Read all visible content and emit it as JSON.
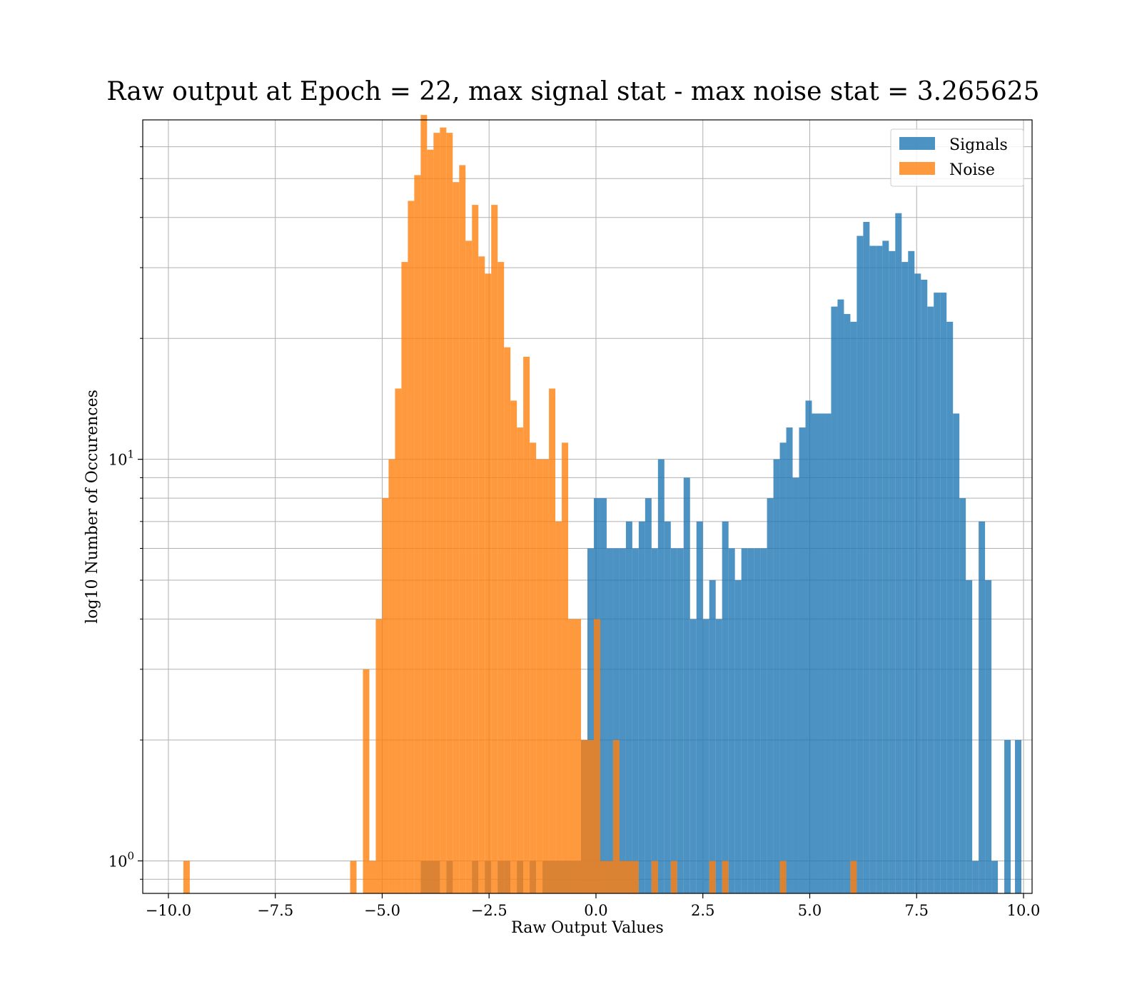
{
  "chart_data": {
    "type": "bar",
    "title": "Raw output at Epoch = 22, max signal stat - max noise stat = 3.265625",
    "xlabel": "Raw Output Values",
    "ylabel": "log10 Number of Occurences",
    "xlim": [
      -10.6,
      10.2
    ],
    "ylim": [
      0.83,
      70
    ],
    "yscale": "log",
    "grid": true,
    "legend_position": "top-right",
    "x_ticks": [
      -10.0,
      -7.5,
      -5.0,
      -2.5,
      0.0,
      2.5,
      5.0,
      7.5,
      10.0
    ],
    "x_tick_labels": [
      "−10.0",
      "−7.5",
      "−5.0",
      "−2.5",
      "0.0",
      "2.5",
      "5.0",
      "7.5",
      "10.0"
    ],
    "y_major_ticks": [
      1,
      10
    ],
    "y_tick_labels": [
      {
        "base": "10",
        "exp": "0"
      },
      {
        "base": "10",
        "exp": "1"
      }
    ],
    "y_minor_ticks": [
      0.9,
      2,
      3,
      4,
      5,
      6,
      7,
      8,
      9,
      20,
      30,
      40,
      50,
      60
    ],
    "bin_width": 0.15,
    "series": [
      {
        "name": "Signals",
        "color": "#1f77b4",
        "opacity": 0.8,
        "bins": [
          [
            -4.1,
            1
          ],
          [
            -3.95,
            1
          ],
          [
            -3.8,
            1
          ],
          [
            -3.5,
            1
          ],
          [
            -2.9,
            1
          ],
          [
            -2.6,
            1
          ],
          [
            -2.3,
            1
          ],
          [
            -2.15,
            1
          ],
          [
            -1.85,
            1
          ],
          [
            -1.55,
            1
          ],
          [
            -1.25,
            1
          ],
          [
            -1.1,
            1
          ],
          [
            -0.95,
            1
          ],
          [
            -0.8,
            1
          ],
          [
            -0.65,
            1
          ],
          [
            -0.5,
            1
          ],
          [
            -0.35,
            2
          ],
          [
            -0.2,
            6
          ],
          [
            -0.05,
            8
          ],
          [
            0.1,
            8
          ],
          [
            0.25,
            6
          ],
          [
            0.4,
            6
          ],
          [
            0.55,
            6
          ],
          [
            0.7,
            7
          ],
          [
            0.85,
            6
          ],
          [
            1.0,
            7
          ],
          [
            1.15,
            8
          ],
          [
            1.3,
            6
          ],
          [
            1.45,
            10
          ],
          [
            1.6,
            7
          ],
          [
            1.75,
            6
          ],
          [
            1.9,
            6
          ],
          [
            2.05,
            9
          ],
          [
            2.2,
            4
          ],
          [
            2.35,
            7
          ],
          [
            2.5,
            4
          ],
          [
            2.65,
            5
          ],
          [
            2.8,
            4
          ],
          [
            2.95,
            7
          ],
          [
            3.1,
            6
          ],
          [
            3.25,
            5
          ],
          [
            3.4,
            6
          ],
          [
            3.55,
            6
          ],
          [
            3.7,
            6
          ],
          [
            3.85,
            6
          ],
          [
            4.0,
            8
          ],
          [
            4.15,
            10
          ],
          [
            4.3,
            11
          ],
          [
            4.45,
            12
          ],
          [
            4.6,
            9
          ],
          [
            4.75,
            12
          ],
          [
            4.9,
            14
          ],
          [
            5.05,
            13
          ],
          [
            5.2,
            13
          ],
          [
            5.35,
            13
          ],
          [
            5.5,
            24
          ],
          [
            5.65,
            25
          ],
          [
            5.8,
            23
          ],
          [
            5.95,
            22
          ],
          [
            6.1,
            36
          ],
          [
            6.25,
            39
          ],
          [
            6.4,
            34
          ],
          [
            6.55,
            34
          ],
          [
            6.7,
            35
          ],
          [
            6.85,
            33
          ],
          [
            7.0,
            41
          ],
          [
            7.15,
            31
          ],
          [
            7.3,
            33
          ],
          [
            7.45,
            29
          ],
          [
            7.6,
            28
          ],
          [
            7.75,
            24
          ],
          [
            7.9,
            26
          ],
          [
            8.05,
            26
          ],
          [
            8.2,
            22
          ],
          [
            8.35,
            13
          ],
          [
            8.5,
            8
          ],
          [
            8.65,
            5
          ],
          [
            8.8,
            1
          ],
          [
            8.95,
            7
          ],
          [
            9.1,
            5
          ],
          [
            9.25,
            1
          ],
          [
            9.55,
            2
          ],
          [
            9.8,
            2
          ]
        ]
      },
      {
        "name": "Noise",
        "color": "#ff7f0e",
        "opacity": 0.8,
        "bins": [
          [
            -9.65,
            1
          ],
          [
            -5.75,
            1
          ],
          [
            -5.45,
            3
          ],
          [
            -5.3,
            1
          ],
          [
            -5.15,
            4
          ],
          [
            -5.0,
            8
          ],
          [
            -4.85,
            10
          ],
          [
            -4.7,
            15
          ],
          [
            -4.55,
            31
          ],
          [
            -4.4,
            44
          ],
          [
            -4.25,
            51
          ],
          [
            -4.1,
            72
          ],
          [
            -3.95,
            59
          ],
          [
            -3.8,
            65
          ],
          [
            -3.65,
            67
          ],
          [
            -3.5,
            65
          ],
          [
            -3.35,
            49
          ],
          [
            -3.2,
            54
          ],
          [
            -3.05,
            35
          ],
          [
            -2.9,
            43
          ],
          [
            -2.75,
            32
          ],
          [
            -2.6,
            29
          ],
          [
            -2.45,
            43
          ],
          [
            -2.3,
            31
          ],
          [
            -2.15,
            19
          ],
          [
            -2.0,
            14
          ],
          [
            -1.85,
            12
          ],
          [
            -1.7,
            18
          ],
          [
            -1.55,
            11
          ],
          [
            -1.4,
            10
          ],
          [
            -1.25,
            10
          ],
          [
            -1.1,
            15
          ],
          [
            -0.95,
            7
          ],
          [
            -0.8,
            11
          ],
          [
            -0.65,
            4
          ],
          [
            -0.5,
            4
          ],
          [
            -0.35,
            2
          ],
          [
            -0.2,
            2
          ],
          [
            -0.05,
            4
          ],
          [
            0.1,
            1
          ],
          [
            0.25,
            1
          ],
          [
            0.4,
            2
          ],
          [
            0.55,
            1
          ],
          [
            0.7,
            1
          ],
          [
            0.85,
            1
          ],
          [
            1.3,
            1
          ],
          [
            1.75,
            1
          ],
          [
            2.65,
            1
          ],
          [
            2.95,
            1
          ],
          [
            4.3,
            1
          ],
          [
            5.95,
            1
          ]
        ]
      }
    ]
  }
}
